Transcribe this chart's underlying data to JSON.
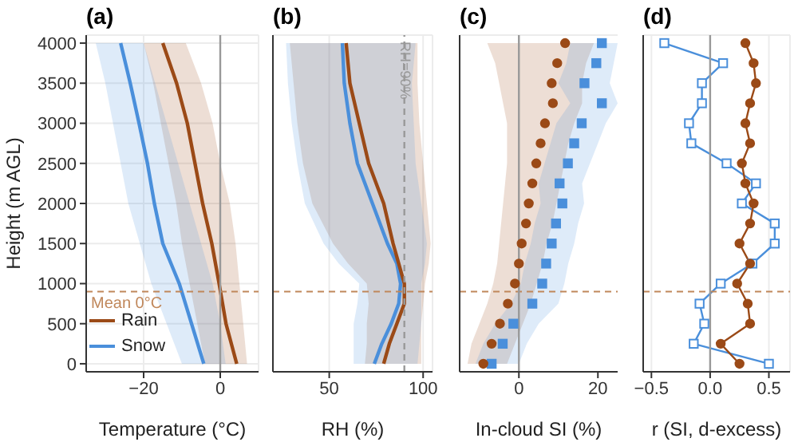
{
  "chart_data": [
    {
      "type": "line",
      "title": "(a)",
      "xlabel": "Temperature (°C)",
      "ylabel": "Height (m AGL)",
      "orientation": "horizontal",
      "x": [
        0,
        500,
        1000,
        1500,
        2000,
        2500,
        3000,
        3500,
        4000
      ],
      "series": [
        {
          "name": "Rain",
          "color": "#9b4a17",
          "values": [
            4.3,
            1.5,
            -0.3,
            -2.2,
            -4.6,
            -6.6,
            -8.6,
            -11.4,
            -15
          ],
          "lower": [
            -4,
            -6,
            -8,
            -10,
            -11.5,
            -13.5,
            -15.5,
            -17.5,
            -20
          ],
          "upper": [
            7,
            6,
            5,
            4,
            2.5,
            0,
            -2,
            -5,
            -9
          ]
        },
        {
          "name": "Snow",
          "color": "#4a8fdb",
          "values": [
            -4.3,
            -7.5,
            -10.7,
            -15,
            -17.2,
            -19,
            -21.2,
            -23.5,
            -26
          ],
          "lower": [
            -10,
            -14,
            -18,
            -21,
            -24,
            -26,
            -28,
            -30,
            -32.5
          ],
          "upper": [
            1.4,
            0,
            -2,
            -5,
            -8,
            -11,
            -14,
            -17,
            -20
          ]
        }
      ],
      "xlim": [
        -35,
        10
      ],
      "xticks": [
        {
          "value": -20,
          "label": "−20"
        },
        0
      ],
      "ylim": [
        -100,
        4100
      ],
      "yticks": [
        0,
        500,
        1000,
        1500,
        2000,
        2500,
        3000,
        3500,
        4000
      ],
      "grid": true,
      "legend": "bottom left",
      "ref_lines": [
        {
          "axis": "y",
          "value": 900,
          "label": "Mean 0°C",
          "color": "#c0875a",
          "line_style": "dashed"
        },
        {
          "axis": "x",
          "value": 0,
          "color": "#999999",
          "line_style": "solid"
        }
      ]
    },
    {
      "type": "line",
      "title": "(b)",
      "xlabel": "RH (%)",
      "orientation": "horizontal",
      "x": [
        0,
        250,
        500,
        750,
        1000,
        1250,
        1500,
        2000,
        2500,
        3000,
        3500,
        4000
      ],
      "series": [
        {
          "color": "#9b4a17",
          "values": [
            79,
            82,
            86,
            90,
            90,
            87,
            84,
            79,
            71,
            66,
            61,
            59
          ],
          "lower": [
            69,
            70,
            70,
            71,
            70,
            60,
            52,
            41,
            36,
            33,
            31,
            29
          ],
          "upper": [
            99,
            99,
            99,
            100,
            101,
            103,
            104,
            102,
            100,
            98,
            97,
            97
          ]
        },
        {
          "color": "#4a8fdb",
          "values": [
            74,
            78,
            83,
            87,
            88,
            86,
            81,
            73,
            65,
            61,
            58,
            57
          ],
          "lower": [
            63,
            63,
            63,
            65,
            66,
            55,
            47,
            37,
            33,
            30,
            28,
            27
          ],
          "upper": [
            97,
            98,
            99,
            99,
            99,
            101,
            102,
            99,
            96,
            95,
            94,
            96
          ]
        }
      ],
      "xlim": [
        20,
        105
      ],
      "xticks": [
        50,
        100
      ],
      "ylim": [
        -100,
        4100
      ],
      "yticks": [
        0,
        500,
        1000,
        1500,
        2000,
        2500,
        3000,
        3500,
        4000
      ],
      "tick_labels": "x",
      "grid": true,
      "ref_lines": [
        {
          "axis": "y",
          "value": 900,
          "color": "#c0875a",
          "line_style": "dashed"
        },
        {
          "axis": "x",
          "value": 90,
          "label": "RH=90%",
          "color": "#999999",
          "line_style": "dashed"
        }
      ]
    },
    {
      "type": "scatter",
      "title": "(c)",
      "xlabel": "In-cloud SI (%)",
      "orientation": "horizontal",
      "x": [
        0,
        250,
        500,
        750,
        1000,
        1250,
        1500,
        1750,
        2000,
        2250,
        2500,
        2750,
        3000,
        3250,
        3500,
        3750,
        4000
      ],
      "series": [
        {
          "color": "#9b4a17",
          "marker": "circle",
          "values": [
            -9,
            -6.9,
            -4.8,
            -2.8,
            -1,
            0,
            0.7,
            1.8,
            2.5,
            3.4,
            4.4,
            5.5,
            6.6,
            8.6,
            8.3,
            9.7,
            11.7
          ],
          "lower": [
            -13,
            -12,
            -10,
            -8,
            -6.5,
            -5.5,
            -5,
            -4.5,
            -4,
            -3.5,
            -3,
            -3,
            -3,
            -4,
            -5,
            -6,
            -8
          ],
          "upper": [
            -3,
            -1,
            1,
            3,
            4.5,
            6,
            7,
            8.5,
            9.5,
            10.5,
            11.5,
            12.5,
            14,
            16,
            16,
            17,
            19
          ]
        },
        {
          "color": "#4a8fdb",
          "marker": "square",
          "values": [
            -6.9,
            -4.1,
            -1.4,
            3.4,
            5.9,
            6.9,
            8.3,
            9.4,
            11,
            10.3,
            12.4,
            14,
            15.9,
            21,
            16.6,
            19.6,
            21
          ],
          "lower": [
            -11,
            -9,
            -6,
            -2,
            0.5,
            1.5,
            3,
            4,
            5.5,
            5,
            6.5,
            8,
            9.5,
            13,
            10,
            12,
            13
          ],
          "upper": [
            0,
            2,
            5,
            10,
            11.5,
            12.5,
            14,
            15,
            16.5,
            16,
            18,
            20,
            22,
            25,
            23,
            24,
            25
          ]
        }
      ],
      "xlim": [
        -15,
        25
      ],
      "xticks": [
        0,
        20
      ],
      "ylim": [
        -100,
        4100
      ],
      "yticks": [
        0,
        500,
        1000,
        1500,
        2000,
        2500,
        3000,
        3500,
        4000
      ],
      "tick_labels": "x",
      "grid": "y",
      "ref_lines": [
        {
          "axis": "y",
          "value": 900,
          "color": "#c0875a",
          "line_style": "dashed"
        },
        {
          "axis": "x",
          "value": 0,
          "color": "#999999",
          "line_style": "solid"
        }
      ]
    },
    {
      "type": "line",
      "title": "(d)",
      "xlabel": "r (SI, d-excess)",
      "orientation": "horizontal",
      "x": [
        0,
        250,
        500,
        750,
        1000,
        1250,
        1500,
        1750,
        2000,
        2250,
        2500,
        2750,
        3000,
        3250,
        3500,
        3750,
        4000
      ],
      "series": [
        {
          "color": "#9b4a17",
          "marker": "circle",
          "values": [
            0.25,
            0.09,
            0.34,
            0.32,
            0.23,
            0.34,
            0.25,
            0.34,
            0.37,
            0.3,
            0.27,
            0.34,
            0.3,
            0.34,
            0.39,
            0.37,
            0.3
          ]
        },
        {
          "color": "#4a8fdb",
          "marker": "square",
          "values": [
            0.5,
            -0.14,
            -0.05,
            -0.09,
            0.09,
            0.36,
            0.55,
            0.55,
            0.27,
            0.39,
            0.14,
            -0.16,
            -0.18,
            -0.07,
            -0.07,
            0.11,
            -0.39
          ]
        }
      ],
      "xlim": [
        -0.57,
        0.68
      ],
      "xticks": [
        {
          "value": -0.5,
          "label": "−0.5"
        },
        {
          "value": 0,
          "label": "0.0"
        },
        0.5
      ],
      "ylim": [
        -100,
        4100
      ],
      "yticks": [
        0,
        500,
        1000,
        1500,
        2000,
        2500,
        3000,
        3500,
        4000
      ],
      "tick_labels": "x",
      "grid": true,
      "ref_lines": [
        {
          "axis": "y",
          "value": 900,
          "color": "#c0875a",
          "line_style": "dashed"
        },
        {
          "axis": "x",
          "value": 0,
          "color": "#999999",
          "line_style": "solid"
        }
      ]
    }
  ]
}
